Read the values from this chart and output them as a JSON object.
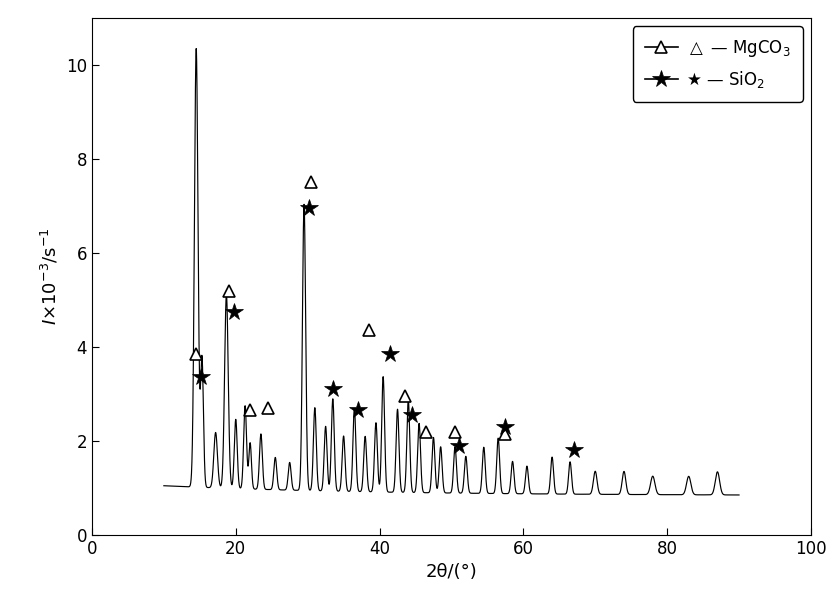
{
  "title": "",
  "xlabel": "2θ/(°)",
  "xlim": [
    0,
    100
  ],
  "ylim": [
    0,
    11
  ],
  "xticks": [
    0,
    20,
    40,
    60,
    80,
    100
  ],
  "yticks": [
    0,
    2,
    4,
    6,
    8,
    10
  ],
  "mgco3_markers": [
    14.5,
    19.0,
    22.0,
    24.5,
    30.5,
    38.5,
    43.5,
    46.5,
    50.5,
    57.5
  ],
  "mgco3_values": [
    3.85,
    5.2,
    2.65,
    2.7,
    7.5,
    4.35,
    2.95,
    2.2,
    2.2,
    2.15
  ],
  "sio2_markers": [
    15.2,
    19.8,
    30.2,
    33.5,
    37.0,
    41.5,
    44.5,
    51.0,
    57.5,
    67.0
  ],
  "sio2_values": [
    3.35,
    4.75,
    6.95,
    3.1,
    2.65,
    3.85,
    2.55,
    1.9,
    2.3,
    1.8
  ],
  "curve_peaks": [
    [
      14.5,
      9.5,
      0.25
    ],
    [
      15.3,
      2.8,
      0.2
    ],
    [
      17.2,
      1.2,
      0.25
    ],
    [
      18.7,
      4.2,
      0.25
    ],
    [
      20.0,
      1.5,
      0.2
    ],
    [
      21.3,
      1.8,
      0.2
    ],
    [
      22.0,
      1.0,
      0.18
    ],
    [
      23.5,
      1.2,
      0.2
    ],
    [
      25.5,
      0.7,
      0.2
    ],
    [
      27.5,
      0.6,
      0.2
    ],
    [
      29.5,
      6.2,
      0.22
    ],
    [
      31.0,
      1.8,
      0.2
    ],
    [
      32.5,
      1.4,
      0.2
    ],
    [
      33.5,
      2.0,
      0.2
    ],
    [
      35.0,
      1.2,
      0.2
    ],
    [
      36.5,
      1.8,
      0.2
    ],
    [
      38.0,
      1.2,
      0.2
    ],
    [
      39.5,
      1.5,
      0.2
    ],
    [
      40.5,
      2.5,
      0.2
    ],
    [
      42.5,
      1.8,
      0.2
    ],
    [
      44.0,
      2.0,
      0.2
    ],
    [
      45.5,
      1.5,
      0.2
    ],
    [
      47.5,
      1.2,
      0.2
    ],
    [
      48.5,
      1.0,
      0.2
    ],
    [
      50.5,
      1.0,
      0.2
    ],
    [
      52.0,
      0.8,
      0.2
    ],
    [
      54.5,
      1.0,
      0.2
    ],
    [
      56.5,
      1.2,
      0.2
    ],
    [
      58.5,
      0.7,
      0.2
    ],
    [
      60.5,
      0.6,
      0.2
    ],
    [
      64.0,
      0.8,
      0.2
    ],
    [
      66.5,
      0.7,
      0.2
    ],
    [
      70.0,
      0.5,
      0.25
    ],
    [
      74.0,
      0.5,
      0.25
    ],
    [
      78.0,
      0.4,
      0.3
    ],
    [
      83.0,
      0.4,
      0.3
    ],
    [
      87.0,
      0.5,
      0.3
    ]
  ],
  "curve_baseline": 0.85,
  "curve_decay_amp": 0.3,
  "curve_decay_rate": 30,
  "curve_peak_height": 10.35,
  "background_color": "#ffffff",
  "line_color": "#000000"
}
